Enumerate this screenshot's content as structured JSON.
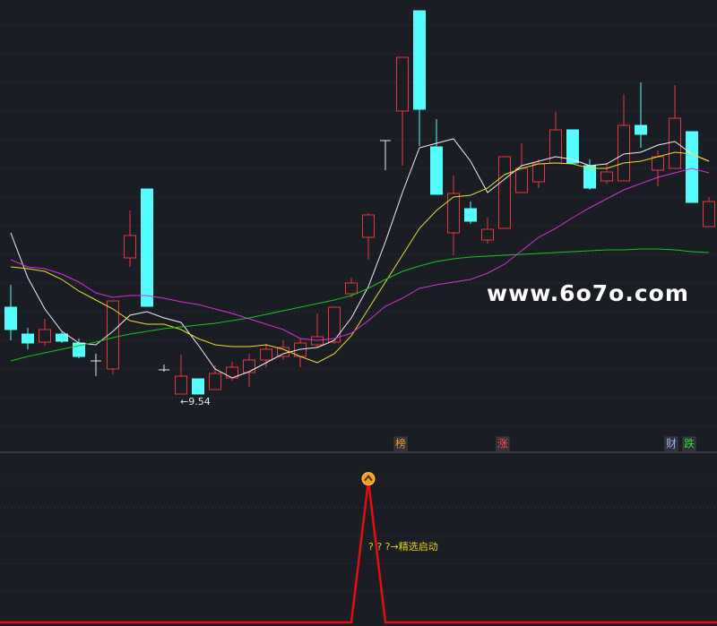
{
  "chart_data": {
    "type": "candlestick",
    "ylim": [
      8.54,
      18.34
    ],
    "up_color": "#e8383a",
    "down_color": "#54fcfc",
    "flat_color": "#e6e6e6",
    "candles": {
      "open": [
        11.48,
        10.88,
        10.7,
        10.88,
        10.68,
        10.28,
        10.1,
        12.58,
        14.12,
        10.08,
        9.54,
        9.88,
        9.64,
        9.9,
        10.02,
        10.3,
        10.38,
        10.38,
        10.64,
        10.7,
        11.78,
        13.04,
        15.2,
        15.86,
        18.1,
        15.06,
        13.14,
        13.68,
        12.98,
        13.24,
        14.04,
        14.28,
        14.7,
        15.44,
        14.64,
        14.3,
        14.3,
        15.54,
        14.54,
        14.58,
        15.4,
        13.28
      ],
      "high": [
        11.98,
        11.02,
        11.22,
        10.92,
        10.78,
        10.44,
        11.62,
        13.64,
        14.12,
        10.2,
        10.42,
        9.88,
        10.18,
        10.26,
        10.44,
        10.66,
        10.74,
        10.78,
        11.34,
        11.48,
        12.14,
        13.58,
        15.2,
        17.06,
        18.1,
        15.68,
        14.42,
        13.84,
        13.48,
        14.84,
        15.14,
        14.78,
        15.84,
        15.44,
        14.78,
        14.7,
        16.24,
        16.5,
        14.98,
        16.44,
        15.4,
        13.94
      ],
      "low": [
        10.74,
        10.54,
        10.62,
        10.68,
        10.34,
        9.94,
        9.98,
        12.38,
        11.5,
        10.04,
        9.54,
        9.54,
        9.64,
        9.84,
        9.7,
        10.14,
        10.3,
        10.14,
        10.58,
        10.66,
        11.7,
        12.54,
        14.54,
        14.64,
        15.08,
        14.0,
        12.64,
        13.34,
        12.9,
        13.24,
        14.04,
        14.14,
        14.7,
        14.7,
        14.1,
        14.24,
        14.3,
        15.04,
        14.18,
        14.58,
        13.82,
        13.28
      ],
      "close": [
        10.98,
        10.68,
        10.98,
        10.72,
        10.38,
        10.28,
        11.62,
        13.08,
        11.5,
        10.08,
        9.94,
        9.54,
        10.0,
        10.14,
        10.3,
        10.54,
        10.58,
        10.68,
        10.82,
        11.48,
        12.02,
        13.54,
        15.2,
        17.06,
        15.9,
        14.0,
        14.02,
        13.4,
        13.22,
        14.84,
        14.58,
        14.68,
        15.44,
        14.7,
        14.14,
        14.5,
        15.54,
        15.34,
        14.84,
        15.7,
        13.82,
        13.84
      ]
    },
    "series": [
      {
        "color": "#f0f0f0",
        "values": [
          13.14,
          12.14,
          11.44,
          10.94,
          10.68,
          10.64,
          10.94,
          11.3,
          11.38,
          11.24,
          11.14,
          10.64,
          10.1,
          9.9,
          10.04,
          10.24,
          10.44,
          10.54,
          10.58,
          10.74,
          11.24,
          11.94,
          12.94,
          14.04,
          15.04,
          15.14,
          15.24,
          14.74,
          14.04,
          14.34,
          14.64,
          14.74,
          14.84,
          14.78,
          14.64,
          14.68,
          14.9,
          14.94,
          15.1,
          15.18,
          14.9,
          14.74
        ]
      },
      {
        "color": "#e8e030",
        "values": [
          12.38,
          12.34,
          12.28,
          12.1,
          11.84,
          11.64,
          11.44,
          11.18,
          11.1,
          11.1,
          10.98,
          10.78,
          10.64,
          10.6,
          10.6,
          10.64,
          10.54,
          10.38,
          10.24,
          10.44,
          10.84,
          11.44,
          12.04,
          12.64,
          13.24,
          13.64,
          13.94,
          13.98,
          14.14,
          14.44,
          14.58,
          14.68,
          14.7,
          14.68,
          14.58,
          14.58,
          14.7,
          14.74,
          14.84,
          14.94,
          14.9,
          14.74
        ]
      },
      {
        "color": "#d830d8",
        "values": [
          12.54,
          12.38,
          12.34,
          12.22,
          12.04,
          11.8,
          11.7,
          11.74,
          11.74,
          11.68,
          11.6,
          11.54,
          11.44,
          11.34,
          11.22,
          11.1,
          10.98,
          10.78,
          10.74,
          10.78,
          10.9,
          11.18,
          11.5,
          11.68,
          11.9,
          11.98,
          12.04,
          12.1,
          12.24,
          12.44,
          12.74,
          13.04,
          13.24,
          13.48,
          13.7,
          13.9,
          14.1,
          14.24,
          14.38,
          14.48,
          14.58,
          14.48
        ]
      },
      {
        "color": "#20c020",
        "values": [
          10.28,
          10.38,
          10.46,
          10.54,
          10.62,
          10.7,
          10.8,
          10.88,
          10.94,
          11.0,
          11.04,
          11.08,
          11.12,
          11.18,
          11.24,
          11.32,
          11.4,
          11.48,
          11.56,
          11.64,
          11.74,
          11.9,
          12.1,
          12.28,
          12.4,
          12.5,
          12.56,
          12.6,
          12.62,
          12.64,
          12.66,
          12.68,
          12.7,
          12.72,
          12.74,
          12.76,
          12.76,
          12.78,
          12.78,
          12.76,
          12.72,
          12.7
        ]
      }
    ],
    "low_annotation": "←9.54",
    "watermark": "www.6o7o.com",
    "markers": [
      {
        "text": "榜",
        "color": "#f0a030"
      },
      {
        "text": "涨",
        "color": "#ff5050"
      },
      {
        "text": "财",
        "color": "#9ab8ff"
      },
      {
        "text": "跌",
        "color": "#30e030"
      }
    ],
    "indicator": {
      "color": "#e01010",
      "ylim": [
        0,
        1.2
      ],
      "values": [
        0,
        0,
        0,
        0,
        0,
        0,
        0,
        0,
        0,
        0,
        0,
        0,
        0,
        0,
        0,
        0,
        0,
        0,
        0,
        0,
        0,
        1,
        0,
        0,
        0,
        0,
        0,
        0,
        0,
        0,
        0,
        0,
        0,
        0,
        0,
        0,
        0,
        0,
        0,
        0,
        0,
        0
      ],
      "signal_label": "? ? ?→精选启动",
      "label_color": "#e8d020"
    }
  }
}
